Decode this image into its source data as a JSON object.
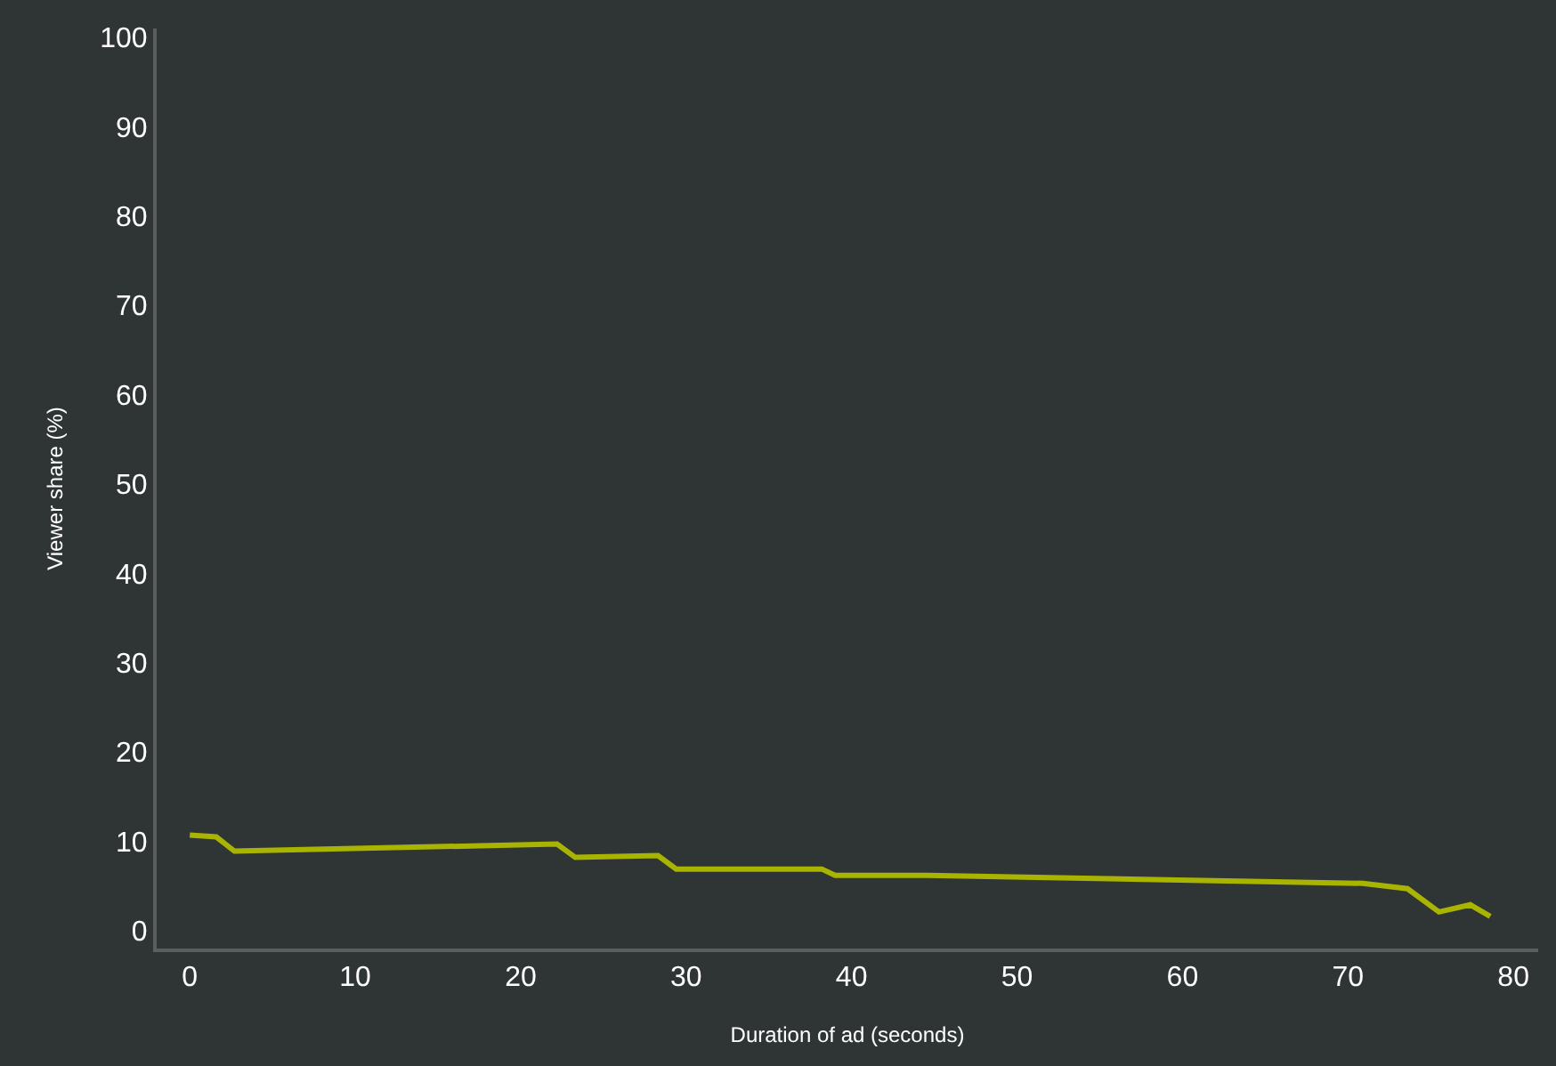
{
  "chart_data": {
    "type": "line",
    "xlabel": "Duration of ad (seconds)",
    "ylabel": "Viewer share (%)",
    "x": [
      0,
      1.6,
      2.7,
      22.2,
      23.3,
      28.3,
      29.4,
      38.2,
      39,
      44.6,
      70.9,
      73.6,
      75.5,
      77.4,
      78.6
    ],
    "series": [
      {
        "color": "#a8b400",
        "values": [
          10.7,
          10.5,
          8.9,
          9.7,
          8.2,
          8.4,
          6.9,
          6.9,
          6.2,
          6.2,
          5.3,
          4.7,
          2.1,
          2.9,
          1.6
        ]
      }
    ],
    "xlim": [
      -2,
      81.5
    ],
    "xticks": [
      0,
      10,
      20,
      30,
      40,
      50,
      60,
      70,
      80
    ],
    "ylim": [
      -2,
      101
    ],
    "yticks": [
      0,
      10,
      20,
      30,
      40,
      50,
      60,
      70,
      80,
      90,
      100
    ],
    "grid": false,
    "marker": "none",
    "line_style": "solid"
  }
}
